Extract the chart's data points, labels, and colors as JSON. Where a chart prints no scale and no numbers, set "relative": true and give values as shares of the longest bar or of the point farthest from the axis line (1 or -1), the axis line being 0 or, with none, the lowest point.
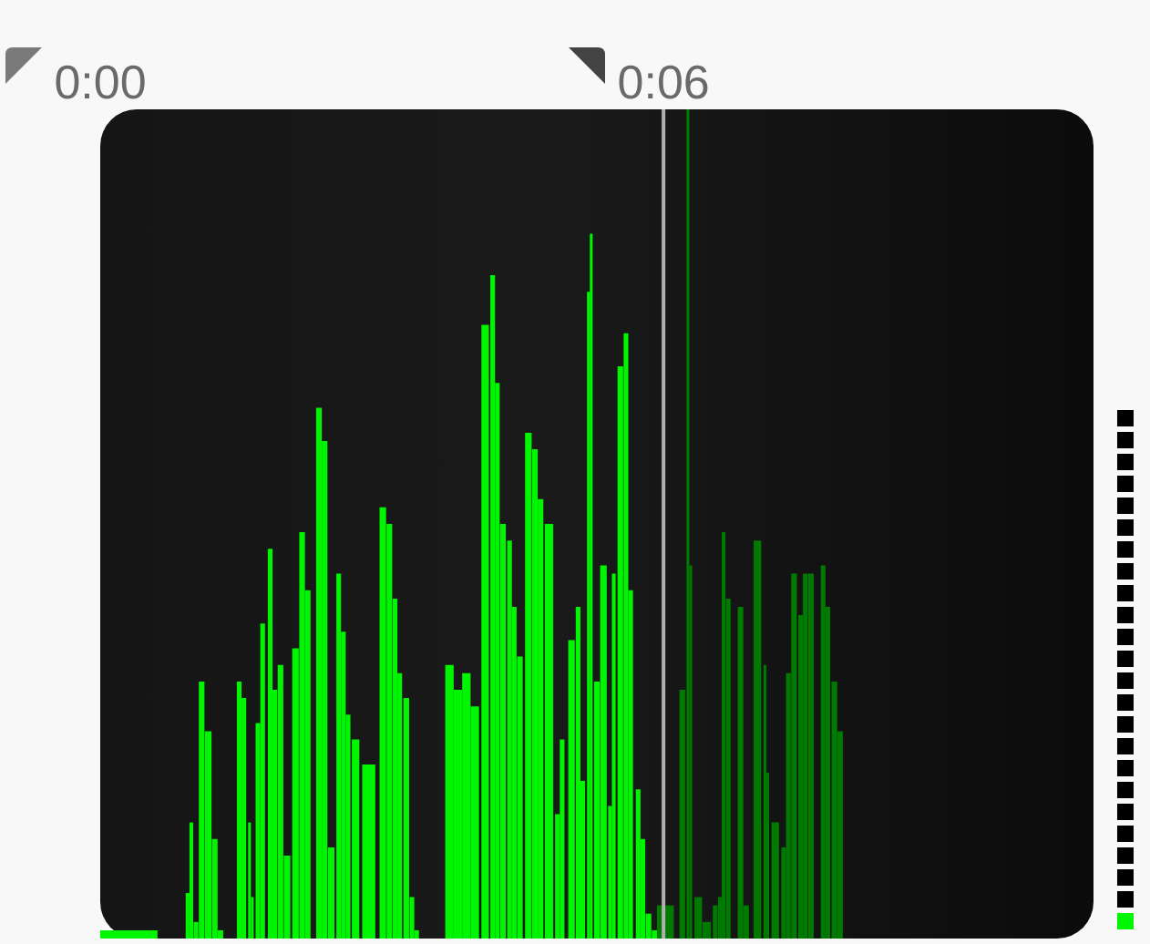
{
  "chart_data": {
    "type": "bar",
    "relative": true,
    "xlim": [
      0,
      10.58
    ],
    "xticks": [
      {
        "value": 0,
        "label": "0:00"
      },
      {
        "value": 6,
        "label": "0:06"
      }
    ],
    "tick_labels": "x",
    "ref_lines": [
      {
        "axis": "x",
        "value": 6,
        "color": "#b0b0b0"
      }
    ],
    "series": [
      {
        "color": "#00f500",
        "x": [
          0.29,
          0.93,
          0.97,
          1.02,
          1.08,
          1.15,
          1.22,
          1.28,
          1.48,
          1.53,
          1.59,
          1.62,
          1.68,
          1.73,
          1.81,
          1.86,
          1.92,
          1.99,
          2.08,
          2.15,
          2.21,
          2.33,
          2.39,
          2.46,
          2.54,
          2.59,
          2.64,
          2.72,
          2.86,
          3.01,
          3.08,
          3.14,
          3.19,
          3.26,
          3.32,
          3.37,
          3.72,
          3.81,
          3.9,
          3.99,
          4.1,
          4.18,
          4.23,
          4.29,
          4.36,
          4.41,
          4.47,
          4.56,
          4.63,
          4.69,
          4.78,
          4.87,
          4.92,
          5.02,
          5.09,
          5.14,
          5.2,
          5.23,
          5.29,
          5.36,
          5.43,
          5.47,
          5.54,
          5.6,
          5.65,
          5.73,
          5.78,
          5.84,
          5.91
        ],
        "values": [
          0.01,
          0.055,
          0.14,
          0.02,
          0.31,
          0.25,
          0.12,
          0.01,
          0.31,
          0.29,
          0.14,
          0.05,
          0.26,
          0.38,
          0.47,
          0.3,
          0.33,
          0.1,
          0.35,
          0.49,
          0.42,
          0.64,
          0.6,
          0.11,
          0.44,
          0.37,
          0.27,
          0.24,
          0.21,
          0.52,
          0.5,
          0.41,
          0.32,
          0.29,
          0.05,
          0.01,
          0.33,
          0.3,
          0.32,
          0.28,
          0.74,
          0.8,
          0.67,
          0.5,
          0.48,
          0.4,
          0.34,
          0.61,
          0.59,
          0.53,
          0.5,
          0.15,
          0.24,
          0.36,
          0.4,
          0.19,
          0.78,
          0.85,
          0.31,
          0.45,
          0.16,
          0.44,
          0.69,
          0.73,
          0.42,
          0.18,
          0.12,
          0.03,
          0.01
        ]
      },
      {
        "color": "#007a00",
        "x": [
          6.02,
          6.2,
          6.26,
          6.29,
          6.37,
          6.46,
          6.55,
          6.6,
          6.64,
          6.69,
          6.82,
          6.88,
          7.0,
          7.08,
          7.11,
          7.19,
          7.28,
          7.33,
          7.39,
          7.46,
          7.51,
          7.57,
          7.7,
          7.75,
          7.82,
          7.88
        ],
        "values": [
          0.04,
          0.3,
          1.0,
          0.45,
          0.05,
          0.02,
          0.04,
          0.05,
          0.49,
          0.41,
          0.4,
          0.04,
          0.48,
          0.33,
          0.2,
          0.14,
          0.11,
          0.32,
          0.44,
          0.39,
          0.44,
          0.44,
          0.45,
          0.4,
          0.31,
          0.25
        ]
      }
    ]
  }
}
